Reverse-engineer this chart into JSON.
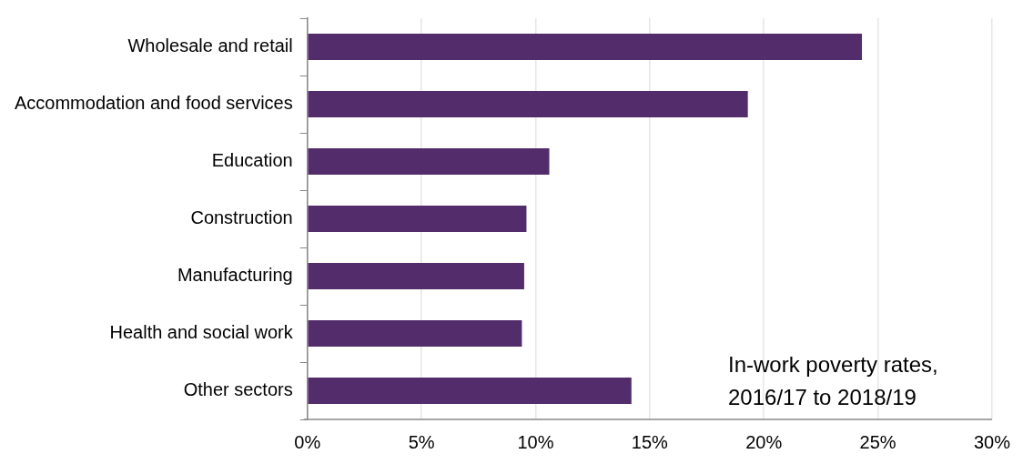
{
  "chart_data": {
    "type": "bar",
    "orientation": "horizontal",
    "categories": [
      "Wholesale and retail",
      "Accommodation and food services",
      "Education",
      "Construction",
      "Manufacturing",
      "Health and social work",
      "Other sectors"
    ],
    "values": [
      24.3,
      19.3,
      10.6,
      9.6,
      9.5,
      9.4,
      14.2
    ],
    "color": "#532c6b",
    "xlim": [
      0,
      30
    ],
    "xticks": [
      {
        "value": 0,
        "label": "0%"
      },
      {
        "value": 5,
        "label": "5%"
      },
      {
        "value": 10,
        "label": "10%"
      },
      {
        "value": 15,
        "label": "15%"
      },
      {
        "value": 20,
        "label": "20%"
      },
      {
        "value": 25,
        "label": "25%"
      },
      {
        "value": 30,
        "label": "30%"
      }
    ],
    "grid": "x",
    "annotations": [
      "In-work poverty rates,\n2016/17 to 2018/19"
    ]
  }
}
